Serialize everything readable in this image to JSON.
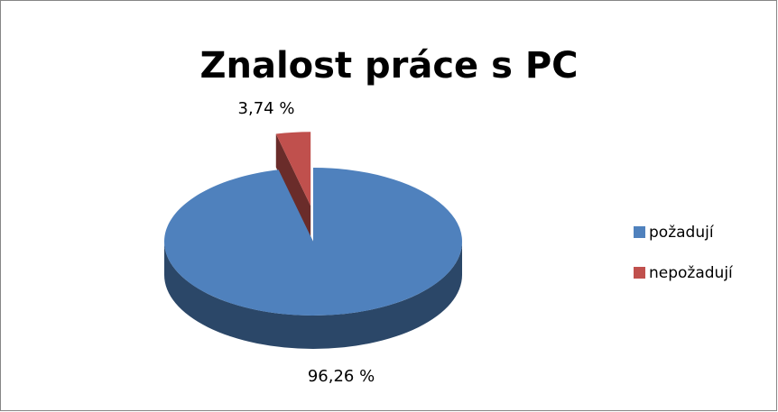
{
  "chart_data": {
    "type": "pie3d",
    "title": "Znalost práce s PC",
    "categories": [
      "požadují",
      "nepožadují"
    ],
    "values": [
      96.26,
      3.74
    ],
    "value_labels": [
      "96,26 %",
      "3,74 %"
    ],
    "colors": [
      "#4f81bd",
      "#c0504d"
    ],
    "legend": "right"
  }
}
